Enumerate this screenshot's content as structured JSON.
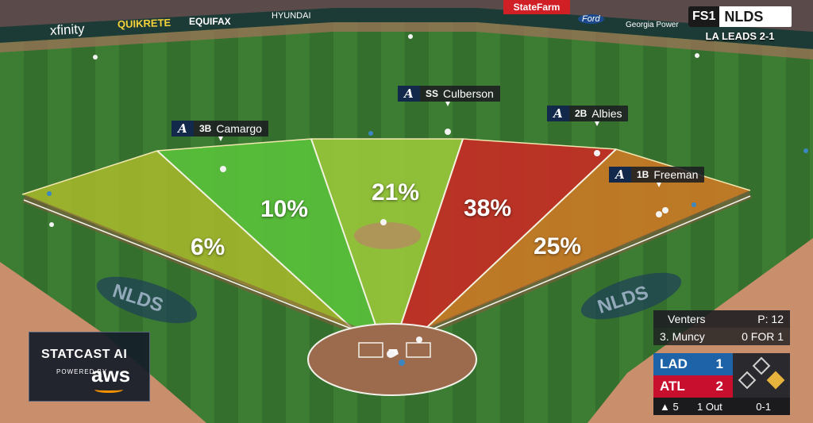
{
  "network": {
    "logo_a": "FS1",
    "logo_b": "NLDS",
    "series_status": "LA LEADS 2-1"
  },
  "spray_chart": {
    "zones": [
      {
        "label": "6%",
        "value": 6,
        "color": "#a6b82c"
      },
      {
        "label": "10%",
        "value": 10,
        "color": "#5bc43b"
      },
      {
        "label": "21%",
        "value": 21,
        "color": "#9cc93b"
      },
      {
        "label": "38%",
        "value": 38,
        "color": "#cc2a24"
      },
      {
        "label": "25%",
        "value": 25,
        "color": "#cf7a24"
      }
    ]
  },
  "fielders": [
    {
      "pos": "3B",
      "name": "Camargo"
    },
    {
      "pos": "SS",
      "name": "Culberson"
    },
    {
      "pos": "2B",
      "name": "Albies"
    },
    {
      "pos": "1B",
      "name": "Freeman"
    }
  ],
  "team_logo_glyph": "A",
  "statcast": {
    "title": "STATCAST AI",
    "powered": "POWERED BY",
    "brand": "aws"
  },
  "scorebug": {
    "pitcher": "Venters",
    "pitch_label": "P: 12",
    "batter": "3. Muncy",
    "batter_line": "0 FOR 1",
    "away": {
      "abbr": "LAD",
      "runs": "1",
      "color": "#1e63a8"
    },
    "home": {
      "abbr": "ATL",
      "runs": "2",
      "color": "#c8102e"
    },
    "inning": "▲ 5",
    "outs": "1 Out",
    "count": "0-1",
    "runner_on_first": true
  },
  "signage": [
    "xfinity",
    "QUIKRETE",
    "EQUIFAX",
    "HYUNDAI",
    "StateFarm",
    "Ford",
    "Georgia Power"
  ]
}
